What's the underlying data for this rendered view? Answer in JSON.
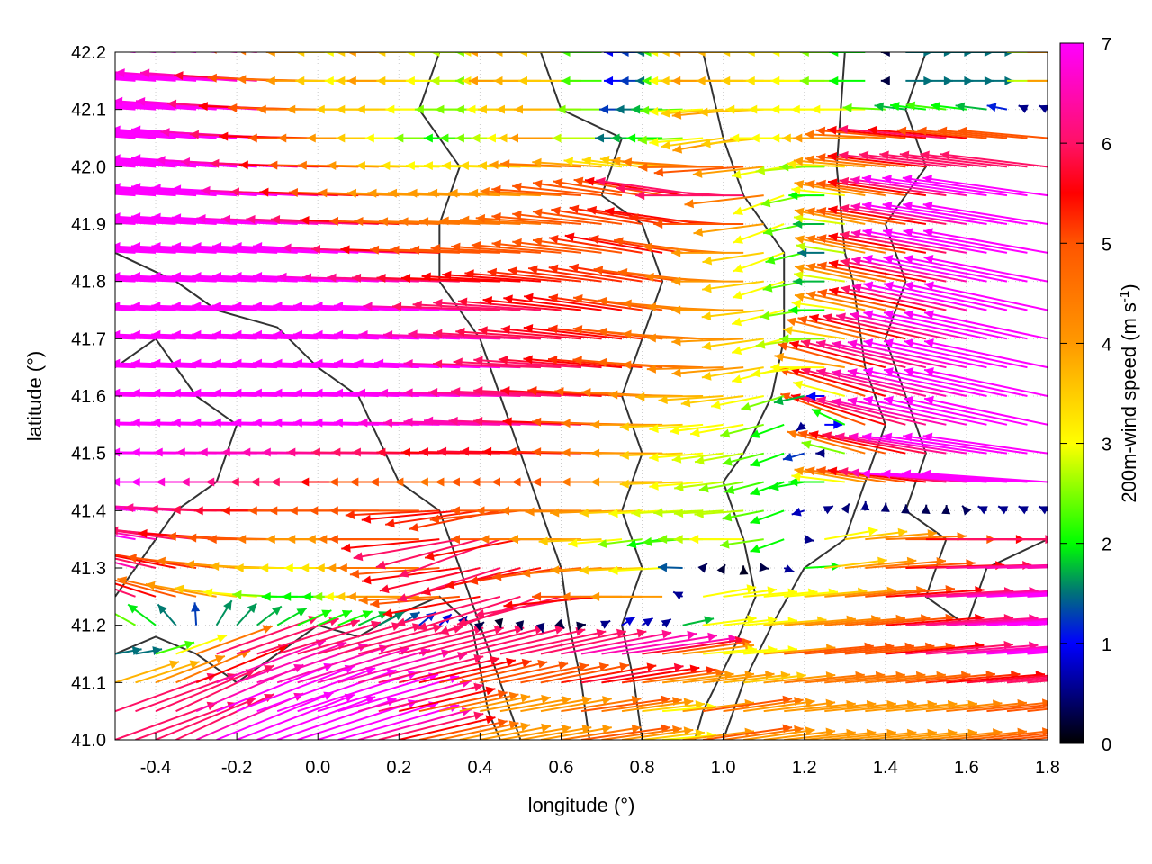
{
  "chart_data": {
    "type": "vector-field",
    "xlabel": "longitude (°)",
    "ylabel": "latitude (°)",
    "colorbar_label": "200m-wind speed (m s",
    "colorbar_label_sup": "-1",
    "colorbar_label_end": ")",
    "xlim": [
      -0.5,
      1.8
    ],
    "ylim": [
      41.0,
      42.2
    ],
    "clim": [
      0,
      7
    ],
    "xticks": [
      "-0.4",
      "-0.2",
      "0.0",
      "0.2",
      "0.4",
      "0.6",
      "0.8",
      "1.0",
      "1.2",
      "1.4",
      "1.6",
      "1.8"
    ],
    "yticks": [
      "41.0",
      "41.1",
      "41.2",
      "41.3",
      "41.4",
      "41.5",
      "41.6",
      "41.7",
      "41.8",
      "41.9",
      "42.0",
      "42.1",
      "42.2"
    ],
    "cticks": [
      "0",
      "1",
      "2",
      "3",
      "4",
      "5",
      "6",
      "7"
    ],
    "grid": true,
    "colormap": [
      {
        "v": 0,
        "c": "#000000"
      },
      {
        "v": 1,
        "c": "#0000ff"
      },
      {
        "v": 1.5,
        "c": "#00707a"
      },
      {
        "v": 2,
        "c": "#00ff00"
      },
      {
        "v": 3,
        "c": "#ffff00"
      },
      {
        "v": 4,
        "c": "#ff9900"
      },
      {
        "v": 5,
        "c": "#ff5500"
      },
      {
        "v": 5.5,
        "c": "#ff0000"
      },
      {
        "v": 6,
        "c": "#ff1166"
      },
      {
        "v": 7,
        "c": "#ff00ff"
      }
    ],
    "contour_color": "#333333",
    "grid_lon": [
      -0.45,
      -0.35,
      -0.25,
      -0.15,
      -0.05,
      0.05,
      0.15,
      0.25,
      0.35,
      0.45,
      0.55,
      0.65,
      0.75,
      0.85,
      0.95,
      1.05,
      1.15,
      1.25,
      1.35,
      1.45,
      1.55,
      1.65,
      1.75
    ],
    "grid_lat": [
      42.15,
      42.05,
      41.95,
      41.85,
      41.75,
      41.65,
      41.55,
      41.45,
      41.35,
      41.25,
      41.15,
      41.05
    ],
    "speed": [
      [
        7,
        7,
        7,
        6.5,
        5,
        4,
        3,
        4,
        3,
        2.5,
        4,
        3.5,
        1,
        1.5,
        3,
        4,
        3.5,
        3,
        2,
        1.5,
        1.5,
        1.5,
        4
      ],
      [
        7,
        7,
        7,
        7,
        6,
        5,
        4,
        3,
        2,
        2.5,
        3,
        4,
        1.5,
        2,
        3,
        4,
        3,
        3,
        4,
        5,
        6,
        5,
        5
      ],
      [
        7,
        7,
        7,
        7,
        7,
        6,
        5,
        4,
        4,
        4,
        4,
        5,
        5,
        5,
        6,
        6,
        3,
        2,
        4,
        5,
        6,
        7,
        7
      ],
      [
        7,
        7,
        7,
        7,
        7,
        7,
        7,
        6,
        5,
        5,
        5,
        5,
        5,
        5.5,
        5,
        4,
        3,
        1.5,
        4,
        5,
        6,
        7,
        7
      ],
      [
        7,
        7,
        7,
        7,
        7,
        7,
        7,
        7,
        7,
        6,
        6,
        5.5,
        5.5,
        5,
        4.5,
        4,
        3,
        2,
        4,
        5,
        6,
        7,
        7
      ],
      [
        7,
        7,
        7,
        7,
        7,
        7,
        7,
        7,
        7,
        7,
        6,
        6,
        5.5,
        5,
        4.5,
        4,
        3,
        3,
        5,
        6,
        6.5,
        7,
        7
      ],
      [
        7,
        7,
        7,
        7,
        7,
        7,
        7,
        7,
        7,
        6.5,
        6.5,
        6,
        5,
        4,
        3,
        3,
        2,
        1,
        5,
        6,
        6.5,
        7,
        7
      ],
      [
        7,
        7,
        7,
        7,
        6.5,
        6,
        6,
        5,
        5,
        4.5,
        5,
        5,
        5,
        4,
        3,
        2.5,
        2,
        2,
        4,
        5,
        6,
        7,
        7
      ],
      [
        7,
        6,
        6,
        5,
        5,
        4,
        4,
        5,
        6,
        6,
        5,
        4,
        3,
        2,
        2.5,
        3,
        2,
        3,
        4,
        5,
        6,
        6,
        6
      ],
      [
        6,
        5,
        4,
        3,
        2,
        2,
        3,
        4,
        5,
        6,
        6,
        6,
        5,
        4,
        3,
        3,
        3,
        4,
        5,
        6,
        6.5,
        7,
        7
      ],
      [
        1.5,
        3,
        6,
        6,
        6,
        6,
        6,
        6,
        6,
        6,
        6,
        6.5,
        6.5,
        5,
        3,
        3,
        5,
        5,
        5,
        6,
        6.5,
        7,
        7
      ],
      [
        6,
        6,
        7,
        7,
        7,
        7,
        6,
        5,
        4,
        4,
        4,
        5,
        4,
        3,
        5,
        4,
        4,
        4,
        4,
        4,
        4.5,
        5,
        5
      ]
    ],
    "direction_deg": [
      [
        176,
        176,
        176,
        176,
        178,
        180,
        180,
        180,
        180,
        180,
        180,
        180,
        180,
        180,
        180,
        180,
        180,
        180,
        180,
        0,
        0,
        0,
        0
      ],
      [
        176,
        176,
        176,
        176,
        178,
        180,
        180,
        180,
        180,
        180,
        180,
        180,
        180,
        180,
        185,
        190,
        180,
        180,
        180,
        175,
        175,
        175,
        175
      ],
      [
        176,
        176,
        176,
        176,
        177,
        178,
        178,
        178,
        178,
        178,
        178,
        176,
        172,
        170,
        172,
        180,
        200,
        180,
        170,
        172,
        172,
        172,
        172
      ],
      [
        177,
        177,
        177,
        177,
        177,
        177,
        177,
        178,
        178,
        178,
        176,
        174,
        172,
        170,
        172,
        180,
        200,
        180,
        168,
        170,
        170,
        170,
        170
      ],
      [
        178,
        178,
        178,
        178,
        178,
        178,
        178,
        178,
        178,
        178,
        176,
        174,
        172,
        172,
        175,
        180,
        195,
        180,
        168,
        168,
        168,
        168,
        168
      ],
      [
        178,
        178,
        178,
        178,
        178,
        178,
        178,
        178,
        178,
        178,
        178,
        176,
        175,
        175,
        178,
        185,
        195,
        180,
        165,
        166,
        168,
        168,
        168
      ],
      [
        179,
        179,
        179,
        179,
        179,
        179,
        179,
        179,
        179,
        179,
        178,
        178,
        178,
        180,
        185,
        190,
        200,
        0,
        160,
        165,
        168,
        168,
        168
      ],
      [
        180,
        180,
        180,
        180,
        180,
        180,
        180,
        180,
        180,
        180,
        180,
        180,
        180,
        180,
        185,
        190,
        200,
        180,
        170,
        172,
        174,
        176,
        176
      ],
      [
        170,
        172,
        175,
        178,
        180,
        180,
        180,
        180,
        190,
        200,
        180,
        180,
        185,
        190,
        180,
        180,
        200,
        10,
        5,
        0,
        0,
        0,
        0
      ],
      [
        160,
        165,
        170,
        175,
        180,
        180,
        180,
        180,
        185,
        195,
        200,
        190,
        180,
        180,
        10,
        5,
        5,
        5,
        5,
        3,
        3,
        3,
        3
      ],
      [
        10,
        20,
        20,
        18,
        16,
        15,
        14,
        14,
        14,
        12,
        12,
        10,
        8,
        8,
        5,
        5,
        5,
        5,
        5,
        5,
        4,
        4,
        4
      ],
      [
        20,
        25,
        22,
        20,
        18,
        16,
        14,
        12,
        12,
        10,
        10,
        8,
        8,
        5,
        8,
        8,
        6,
        6,
        6,
        6,
        6,
        6,
        6
      ]
    ],
    "contours": [
      [
        [
          -0.5,
          41.85
        ],
        [
          -0.35,
          41.8
        ],
        [
          -0.25,
          41.75
        ],
        [
          -0.1,
          41.72
        ],
        [
          0.0,
          41.65
        ],
        [
          0.1,
          41.6
        ],
        [
          0.2,
          41.45
        ],
        [
          0.3,
          41.4
        ],
        [
          0.35,
          41.3
        ],
        [
          0.4,
          41.2
        ],
        [
          0.45,
          41.1
        ],
        [
          0.5,
          41.0
        ]
      ],
      [
        [
          0.3,
          42.2
        ],
        [
          0.25,
          42.1
        ],
        [
          0.35,
          42.0
        ],
        [
          0.3,
          41.9
        ],
        [
          0.3,
          41.8
        ],
        [
          0.4,
          41.7
        ],
        [
          0.45,
          41.6
        ],
        [
          0.5,
          41.5
        ],
        [
          0.55,
          41.4
        ],
        [
          0.6,
          41.3
        ],
        [
          0.62,
          41.2
        ],
        [
          0.65,
          41.1
        ],
        [
          0.67,
          41.0
        ]
      ],
      [
        [
          0.55,
          42.2
        ],
        [
          0.6,
          42.1
        ],
        [
          0.75,
          42.05
        ],
        [
          0.7,
          41.95
        ],
        [
          0.8,
          41.9
        ],
        [
          0.85,
          41.8
        ],
        [
          0.8,
          41.7
        ],
        [
          0.75,
          41.6
        ],
        [
          0.8,
          41.5
        ],
        [
          0.75,
          41.4
        ],
        [
          0.8,
          41.3
        ],
        [
          0.75,
          41.2
        ],
        [
          0.78,
          41.1
        ],
        [
          0.8,
          41.0
        ]
      ],
      [
        [
          0.95,
          42.2
        ],
        [
          1.0,
          42.05
        ],
        [
          1.05,
          41.95
        ],
        [
          1.15,
          41.85
        ],
        [
          1.15,
          41.7
        ],
        [
          1.12,
          41.6
        ],
        [
          1.05,
          41.5
        ],
        [
          1.0,
          41.45
        ],
        [
          1.05,
          41.35
        ],
        [
          1.08,
          41.25
        ],
        [
          1.02,
          41.15
        ],
        [
          0.95,
          41.05
        ],
        [
          0.93,
          41.0
        ]
      ],
      [
        [
          1.3,
          42.2
        ],
        [
          1.28,
          42.0
        ],
        [
          1.3,
          41.85
        ],
        [
          1.32,
          41.8
        ],
        [
          1.35,
          41.65
        ],
        [
          1.4,
          41.55
        ],
        [
          1.35,
          41.45
        ],
        [
          1.3,
          41.35
        ],
        [
          1.2,
          41.3
        ],
        [
          1.12,
          41.2
        ],
        [
          1.05,
          41.1
        ],
        [
          1.0,
          41.0
        ]
      ],
      [
        [
          1.5,
          42.2
        ],
        [
          1.45,
          42.1
        ],
        [
          1.5,
          42.0
        ],
        [
          1.4,
          41.9
        ],
        [
          1.45,
          41.8
        ],
        [
          1.4,
          41.7
        ],
        [
          1.45,
          41.6
        ],
        [
          1.5,
          41.5
        ],
        [
          1.45,
          41.4
        ],
        [
          1.55,
          41.35
        ],
        [
          1.5,
          41.25
        ],
        [
          1.6,
          41.2
        ],
        [
          1.65,
          41.3
        ],
        [
          1.8,
          41.35
        ]
      ],
      [
        [
          -0.5,
          41.65
        ],
        [
          -0.4,
          41.7
        ],
        [
          -0.3,
          41.6
        ],
        [
          -0.2,
          41.55
        ],
        [
          -0.25,
          41.45
        ],
        [
          -0.35,
          41.4
        ],
        [
          -0.45,
          41.3
        ],
        [
          -0.5,
          41.25
        ]
      ],
      [
        [
          -0.5,
          41.15
        ],
        [
          -0.4,
          41.18
        ],
        [
          -0.3,
          41.15
        ],
        [
          -0.2,
          41.1
        ],
        [
          -0.1,
          41.15
        ],
        [
          0.0,
          41.2
        ],
        [
          0.1,
          41.18
        ],
        [
          0.2,
          41.22
        ],
        [
          0.3,
          41.25
        ],
        [
          0.38,
          41.2
        ],
        [
          0.42,
          41.05
        ],
        [
          0.45,
          41.0
        ]
      ]
    ]
  }
}
